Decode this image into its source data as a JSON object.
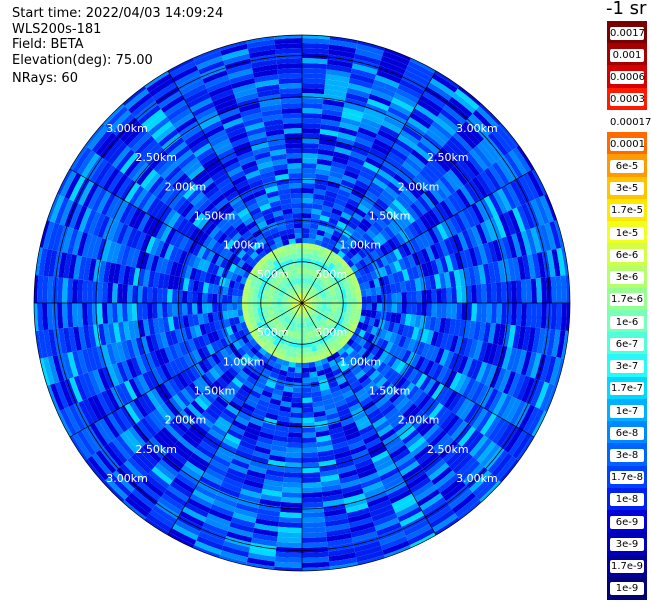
{
  "header": {
    "start_time": "Start time: 2022/04/03 14:09:24",
    "instrument": "WLS200s-181",
    "field": "Field: BETA",
    "elevation": "Elevation(deg): 75.00",
    "nrays": "NRays: 60"
  },
  "colorbar": {
    "unit": "-1 sr",
    "labels": [
      "0.0017",
      "0.001",
      "0.0006",
      "0.0003",
      "0.00017",
      "0.0001",
      "6e-5",
      "3e-5",
      "1.7e-5",
      "1e-5",
      "6e-6",
      "3e-6",
      "1.7e-6",
      "1e-6",
      "6e-7",
      "3e-7",
      "1.7e-7",
      "1e-7",
      "6e-8",
      "3e-8",
      "1.7e-8",
      "1e-8",
      "6e-9",
      "3e-9",
      "1.7e-9",
      "1e-9"
    ],
    "colors": [
      "#7a0000",
      "#a50000",
      "#d40000",
      "#ff1a00",
      "#ffffff",
      "#ff6a00",
      "#ff9a00",
      "#ffc400",
      "#ffe800",
      "#f0ff20",
      "#d2ff46",
      "#b4ff6c",
      "#96ff92",
      "#78ffb8",
      "#50ffd8",
      "#28f8f8",
      "#00d8ff",
      "#00b0ff",
      "#0088ff",
      "#0064ff",
      "#0040ff",
      "#0020f0",
      "#0000d8",
      "#0000b8",
      "#000098",
      "#000078"
    ]
  },
  "chart_data": {
    "type": "heatmap",
    "projection": "polar PPI (range rings in km)",
    "nrays": 60,
    "range_ring_labels": [
      "500m",
      "1.00km",
      "1.50km",
      "2.00km",
      "2.50km",
      "3.00km"
    ],
    "range_ring_values_km": [
      0.5,
      1.0,
      1.5,
      2.0,
      2.5,
      3.0
    ],
    "max_range_km": 3.25,
    "azimuth_spokes_deg": [
      0,
      30,
      60,
      90,
      120,
      150,
      180,
      210,
      240,
      270,
      300,
      330
    ],
    "background_level": "1e-8",
    "near_range_enhancement": {
      "inner_radius_km": 0.1,
      "outer_radius_km": 0.7,
      "profile_levels": [
        "1e-5",
        "3e-6",
        "1.7e-6",
        "1e-6",
        "6e-7",
        "1e-6",
        "1.7e-6",
        "1e-6",
        "6e-7",
        "3e-7",
        "1e-6",
        "1.7e-6",
        "3e-6"
      ]
    }
  }
}
